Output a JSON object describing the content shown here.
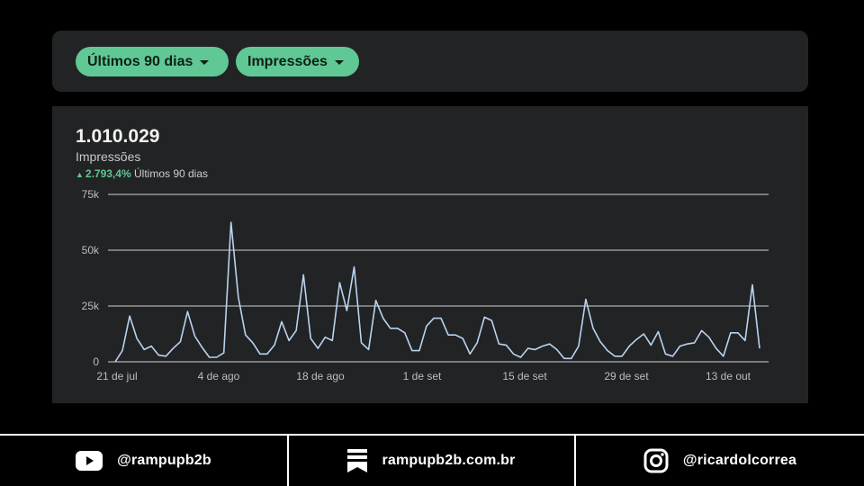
{
  "filters": {
    "period_label": "Últimos 90 dias",
    "metric_label": "Impressões"
  },
  "summary": {
    "total": "1.010.029",
    "metric": "Impressões",
    "change": "2.793,4%",
    "change_period": "Últimos 90 dias"
  },
  "colors": {
    "accent": "#5fc894",
    "line": "#b9d3f0",
    "card": "#222324",
    "grid": "#e6e6e6"
  },
  "chart_data": {
    "type": "line",
    "x_tick_labels": [
      "21 de jul",
      "4 de ago",
      "18 de ago",
      "1 de set",
      "15 de set",
      "29 de set",
      "13 de out"
    ],
    "y_tick_labels": [
      "0",
      "25k",
      "50k",
      "75k"
    ],
    "ylim": [
      0,
      75000
    ],
    "grid": "horizontal",
    "series": [
      {
        "values": [
          0,
          5000,
          20500,
          10500,
          5500,
          7000,
          3000,
          2500,
          6000,
          9000,
          22500,
          11500,
          6500,
          2000,
          2000,
          4000,
          62500,
          29000,
          12000,
          8500,
          3500,
          3500,
          7500,
          18000,
          9500,
          14000,
          39000,
          10500,
          6000,
          11000,
          9500,
          35500,
          23000,
          42500,
          8500,
          5500,
          27500,
          19500,
          15000,
          15000,
          13000,
          5000,
          5000,
          16000,
          19500,
          19500,
          12000,
          12000,
          10500,
          3500,
          8500,
          20000,
          18500,
          8000,
          7500,
          3500,
          2000,
          6000,
          5500,
          7000,
          8000,
          5500,
          1500,
          1500,
          7000,
          28000,
          15000,
          9000,
          5000,
          2500,
          2500,
          7000,
          10000,
          12500,
          7500,
          13500,
          3500,
          2500,
          7000,
          8000,
          8500,
          14000,
          11000,
          6000,
          2500,
          13000,
          13000,
          9500,
          34500,
          6000
        ]
      }
    ]
  },
  "footer": {
    "youtube_handle": "@rampupb2b",
    "website": "rampupb2b.com.br",
    "instagram_handle": "@ricardolcorrea",
    "icons": [
      "youtube-icon",
      "bookmark-icon",
      "instagram-icon"
    ]
  }
}
